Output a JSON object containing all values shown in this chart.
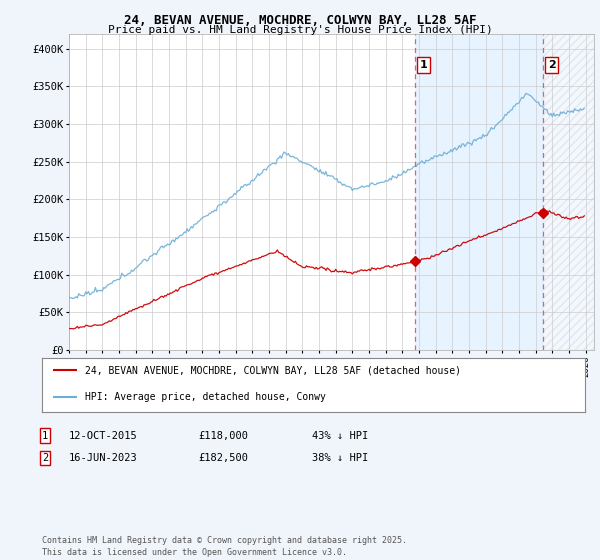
{
  "title_line1": "24, BEVAN AVENUE, MOCHDRE, COLWYN BAY, LL28 5AF",
  "title_line2": "Price paid vs. HM Land Registry's House Price Index (HPI)",
  "xlim_start": 1995.0,
  "xlim_end": 2026.5,
  "ylim_min": 0,
  "ylim_max": 420000,
  "yticks": [
    0,
    50000,
    100000,
    150000,
    200000,
    250000,
    300000,
    350000,
    400000
  ],
  "ytick_labels": [
    "£0",
    "£50K",
    "£100K",
    "£150K",
    "£200K",
    "£250K",
    "£300K",
    "£350K",
    "£400K"
  ],
  "xticks": [
    1995,
    1996,
    1997,
    1998,
    1999,
    2000,
    2001,
    2002,
    2003,
    2004,
    2005,
    2006,
    2007,
    2008,
    2009,
    2010,
    2011,
    2012,
    2013,
    2014,
    2015,
    2016,
    2017,
    2018,
    2019,
    2020,
    2021,
    2022,
    2023,
    2024,
    2025,
    2026
  ],
  "hpi_color": "#6baed6",
  "price_color": "#cc0000",
  "sale1_x": 2015.78,
  "sale1_y": 118000,
  "sale1_label": "1",
  "sale2_x": 2023.46,
  "sale2_y": 182500,
  "sale2_label": "2",
  "vline_color": "#e06070",
  "shade_color": "#ddeeff",
  "hatch_color": "#ccddee",
  "legend_label_red": "24, BEVAN AVENUE, MOCHDRE, COLWYN BAY, LL28 5AF (detached house)",
  "legend_label_blue": "HPI: Average price, detached house, Conwy",
  "table_row1": [
    "1",
    "12-OCT-2015",
    "£118,000",
    "43% ↓ HPI"
  ],
  "table_row2": [
    "2",
    "16-JUN-2023",
    "£182,500",
    "38% ↓ HPI"
  ],
  "footer": "Contains HM Land Registry data © Crown copyright and database right 2025.\nThis data is licensed under the Open Government Licence v3.0.",
  "background_color": "#f0f4fb",
  "plot_bg_color": "#ffffff",
  "grid_color": "#cccccc"
}
